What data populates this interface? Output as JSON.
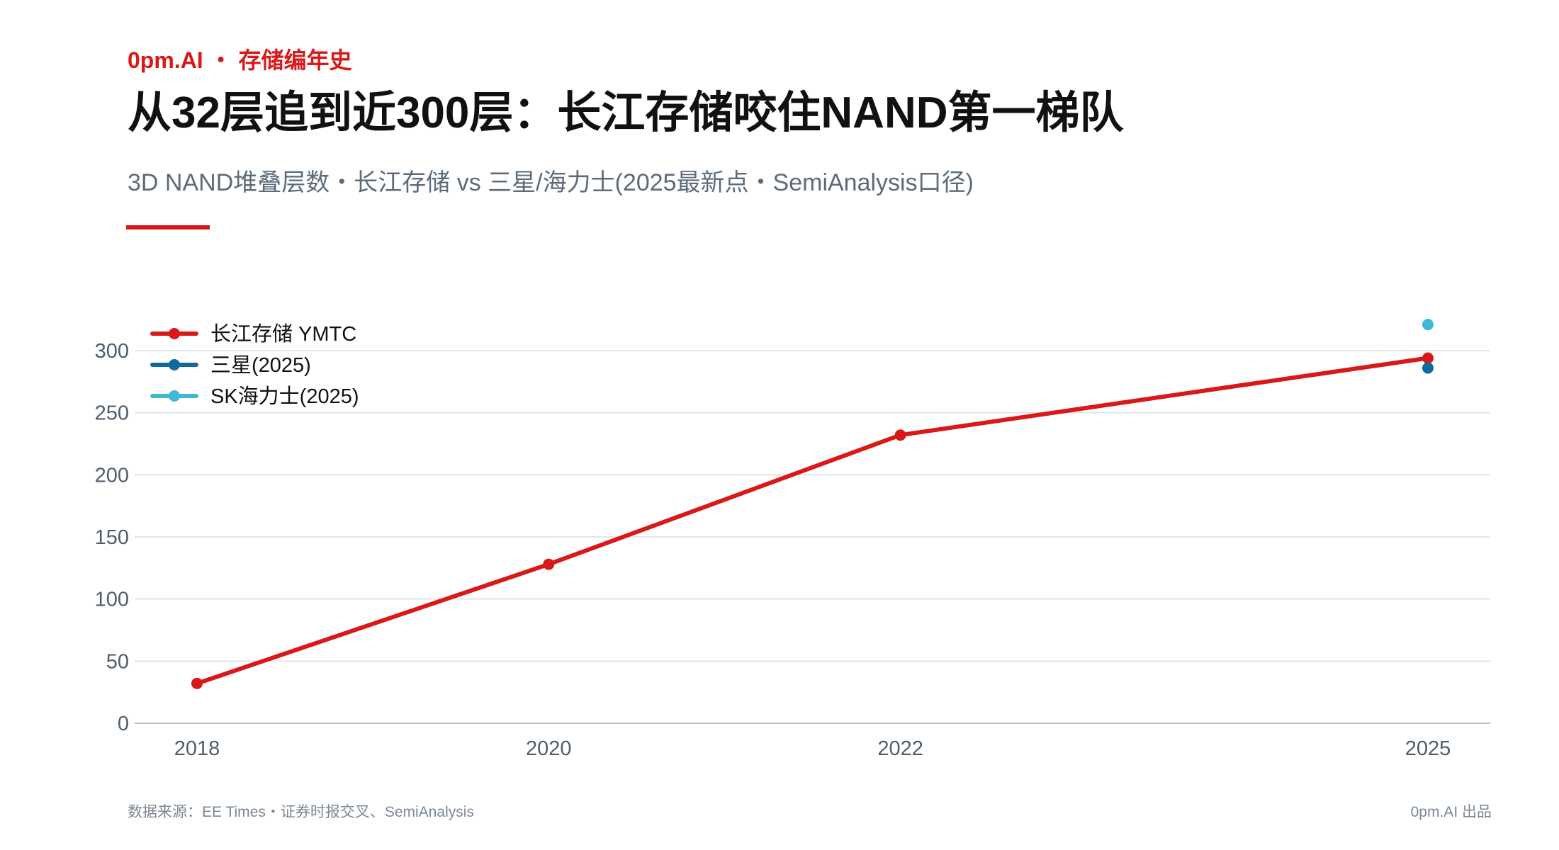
{
  "header": {
    "kicker": "0pm.AI ・ 存储编年史",
    "title": "从32层追到近300层：长江存储咬住NAND第一梯队",
    "subtitle": "3D NAND堆叠层数・长江存储 vs 三星/海力士(2025最新点・SemiAnalysis口径)"
  },
  "colors": {
    "accent": "#d91818",
    "ymtc": "#d91818",
    "samsung": "#0f6aa0",
    "skhynix": "#3fb8d6",
    "grid": "#d9dee3",
    "axis_text": "#4e5d6c"
  },
  "chart_data": {
    "type": "line",
    "title": "",
    "xlabel": "",
    "ylabel": "",
    "x_categories": [
      "2018",
      "2020",
      "2022",
      "2025"
    ],
    "x_values": [
      2018,
      2020,
      2022,
      2025
    ],
    "ylim": [
      0,
      300
    ],
    "yticks": [
      0,
      50,
      100,
      150,
      200,
      250,
      300
    ],
    "grid": true,
    "legend_position": "top-left",
    "series": [
      {
        "name": "长江存储 YMTC",
        "type": "line",
        "color": "#d91818",
        "points": [
          {
            "x": 2018,
            "y": 32
          },
          {
            "x": 2020,
            "y": 128
          },
          {
            "x": 2022,
            "y": 232
          },
          {
            "x": 2025,
            "y": 294
          }
        ]
      },
      {
        "name": "三星(2025)",
        "type": "scatter",
        "color": "#0f6aa0",
        "points": [
          {
            "x": 2025,
            "y": 286
          }
        ]
      },
      {
        "name": "SK海力士(2025)",
        "type": "scatter",
        "color": "#3fb8d6",
        "points": [
          {
            "x": 2025,
            "y": 321
          }
        ]
      }
    ]
  },
  "footer": {
    "source": "数据来源：EE Times・证券时报交叉、SemiAnalysis",
    "credit": "0pm.AI 出品"
  }
}
